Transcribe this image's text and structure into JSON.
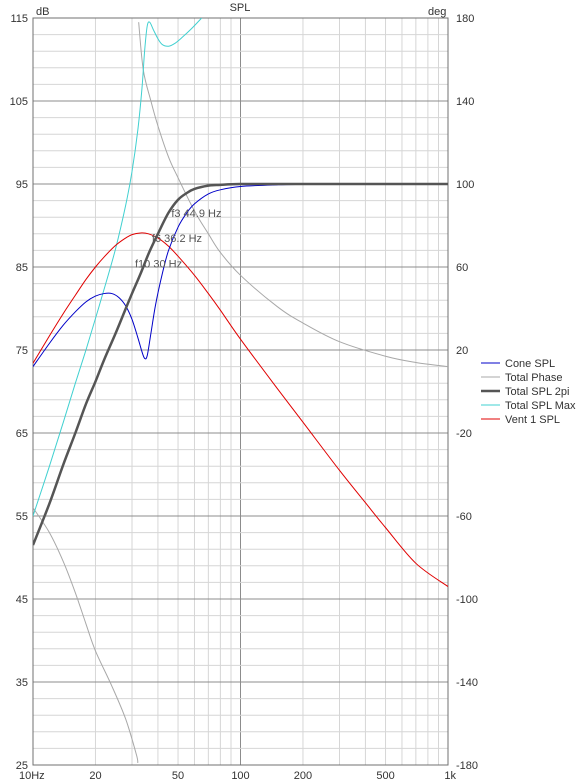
{
  "chart_data": {
    "type": "line",
    "title": "SPL",
    "y_left_unit": "dB",
    "y_right_unit": "deg",
    "x_scale": "log",
    "xlim": [
      10,
      1000
    ],
    "ylim_left": [
      25,
      115
    ],
    "ylim_right": [
      -180,
      180
    ],
    "x_ticks": [
      {
        "value": 10,
        "label": "10Hz"
      },
      {
        "value": 20,
        "label": "20"
      },
      {
        "value": 50,
        "label": "50"
      },
      {
        "value": 100,
        "label": "100"
      },
      {
        "value": 200,
        "label": "200"
      },
      {
        "value": 500,
        "label": "500"
      },
      {
        "value": 1000,
        "label": "1k"
      }
    ],
    "y_left_ticks": [
      115,
      105,
      95,
      85,
      75,
      65,
      55,
      45,
      35,
      25
    ],
    "y_right_ticks": [
      180,
      140,
      100,
      60,
      20,
      -20,
      -60,
      -100,
      -140,
      -180
    ],
    "grid": true,
    "legend_position": "right",
    "series": [
      {
        "name": "Cone SPL",
        "axis": "left",
        "color": "#0000c8",
        "width": 1,
        "points": [
          [
            10,
            73
          ],
          [
            12,
            75.8
          ],
          [
            14,
            78
          ],
          [
            16,
            79.6
          ],
          [
            18,
            80.8
          ],
          [
            20,
            81.5
          ],
          [
            22,
            81.8
          ],
          [
            24,
            81.8
          ],
          [
            26,
            81.3
          ],
          [
            28,
            80.3
          ],
          [
            30,
            78.7
          ],
          [
            32,
            76.5
          ],
          [
            33.5,
            74.8
          ],
          [
            34.5,
            74
          ],
          [
            35.5,
            74.3
          ],
          [
            37,
            77
          ],
          [
            39,
            80.5
          ],
          [
            42,
            84.2
          ],
          [
            45,
            87
          ],
          [
            50,
            89.8
          ],
          [
            55,
            91.5
          ],
          [
            60,
            92.6
          ],
          [
            70,
            93.8
          ],
          [
            80,
            94.3
          ],
          [
            100,
            94.7
          ],
          [
            150,
            94.9
          ],
          [
            200,
            94.95
          ],
          [
            500,
            95
          ],
          [
            1000,
            95
          ]
        ]
      },
      {
        "name": "Total Phase",
        "axis": "right",
        "color": "#a8a8a8",
        "width": 1,
        "points": [
          [
            10,
            -56
          ],
          [
            12,
            -68
          ],
          [
            14,
            -82
          ],
          [
            16,
            -97
          ],
          [
            18,
            -112
          ],
          [
            20,
            -125
          ],
          [
            24,
            -142
          ],
          [
            28,
            -158
          ],
          [
            31.5,
            -175
          ],
          [
            32,
            -179
          ],
          [
            32.3,
            178
          ],
          [
            34,
            155
          ],
          [
            37,
            140
          ],
          [
            40,
            128
          ],
          [
            45,
            113
          ],
          [
            50,
            103
          ],
          [
            60,
            87
          ],
          [
            70,
            76
          ],
          [
            80,
            67
          ],
          [
            100,
            56
          ],
          [
            150,
            41
          ],
          [
            200,
            33
          ],
          [
            300,
            24
          ],
          [
            500,
            17
          ],
          [
            700,
            14
          ],
          [
            1000,
            12
          ]
        ]
      },
      {
        "name": "Total SPL 2pi",
        "axis": "left",
        "color": "#555555",
        "width": 2.5,
        "points": [
          [
            10,
            51.5
          ],
          [
            12,
            56.5
          ],
          [
            14,
            61.2
          ],
          [
            16,
            65
          ],
          [
            18,
            68.5
          ],
          [
            20,
            71.2
          ],
          [
            22,
            73.8
          ],
          [
            25,
            77
          ],
          [
            28,
            80
          ],
          [
            30,
            81.8
          ],
          [
            33,
            84.2
          ],
          [
            36.2,
            86.7
          ],
          [
            40,
            89
          ],
          [
            44.9,
            91.5
          ],
          [
            50,
            93.1
          ],
          [
            55,
            93.9
          ],
          [
            60,
            94.4
          ],
          [
            70,
            94.8
          ],
          [
            80,
            94.9
          ],
          [
            100,
            95
          ],
          [
            200,
            95
          ],
          [
            500,
            95
          ],
          [
            1000,
            95
          ]
        ]
      },
      {
        "name": "Total SPL Max",
        "axis": "left",
        "color": "#40d0d0",
        "width": 1,
        "points": [
          [
            10,
            55
          ],
          [
            12,
            61
          ],
          [
            14,
            66.3
          ],
          [
            16,
            71
          ],
          [
            18,
            75
          ],
          [
            20,
            78.8
          ],
          [
            22,
            82.3
          ],
          [
            25,
            87.2
          ],
          [
            28,
            92.5
          ],
          [
            30,
            96.5
          ],
          [
            32,
            101.5
          ],
          [
            33.5,
            106.5
          ],
          [
            34.5,
            111
          ],
          [
            35.5,
            114
          ],
          [
            36.5,
            114.5
          ],
          [
            38,
            113.6
          ],
          [
            40,
            112.5
          ],
          [
            42,
            111.8
          ],
          [
            45,
            111.6
          ],
          [
            48,
            111.9
          ],
          [
            52,
            112.6
          ],
          [
            58,
            113.7
          ],
          [
            65,
            115
          ]
        ]
      },
      {
        "name": "Vent 1 SPL",
        "axis": "left",
        "color": "#e00000",
        "width": 1,
        "points": [
          [
            10,
            73.4
          ],
          [
            12,
            76.7
          ],
          [
            14,
            79.4
          ],
          [
            16,
            81.6
          ],
          [
            18,
            83.5
          ],
          [
            20,
            85
          ],
          [
            22,
            86.2
          ],
          [
            25,
            87.6
          ],
          [
            28,
            88.5
          ],
          [
            30,
            88.9
          ],
          [
            33,
            89.1
          ],
          [
            36,
            89
          ],
          [
            40,
            88.5
          ],
          [
            45,
            87.5
          ],
          [
            50,
            86.3
          ],
          [
            60,
            84
          ],
          [
            70,
            81.8
          ],
          [
            80,
            79.8
          ],
          [
            100,
            76.3
          ],
          [
            150,
            70.4
          ],
          [
            200,
            66.3
          ],
          [
            300,
            60.5
          ],
          [
            400,
            56.6
          ],
          [
            500,
            53.6
          ],
          [
            700,
            49.3
          ],
          [
            1000,
            46.5
          ]
        ]
      }
    ],
    "annotations": [
      {
        "text": "f3 44.9 Hz",
        "x": 44.9,
        "y": 91.5
      },
      {
        "text": "f6 36.2 Hz",
        "x": 36.2,
        "y": 88.5
      },
      {
        "text": "f10 30 Hz",
        "x": 30,
        "y": 85.4
      }
    ]
  }
}
